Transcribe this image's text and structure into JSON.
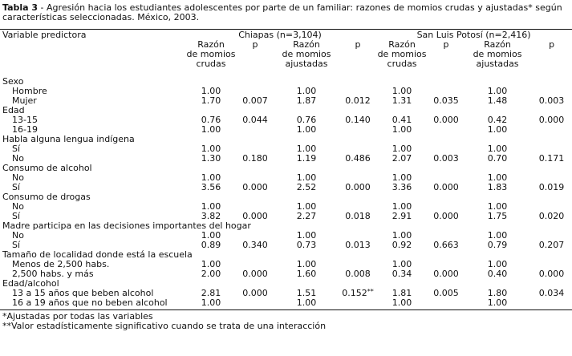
{
  "caption": {
    "label": "Tabla 3",
    "text": " - Agresión hacia los estudiantes adolescentes por parte de un familiar: razones de momios crudas y ajustadas* según características seleccionadas. México, 2003."
  },
  "header": {
    "variable": "Variable predictora",
    "group1": "Chiapas (n=3,104)",
    "group2": "San Luis Potosí (n=2,416)",
    "crude": [
      "Razón",
      "de momios",
      "crudas"
    ],
    "adjusted": [
      "Razón",
      "de momios",
      "ajustadas"
    ],
    "p": "p"
  },
  "rows": [
    {
      "type": "group",
      "label": "Sexo"
    },
    {
      "type": "item",
      "label": "Hombre",
      "v": [
        "1.00",
        "",
        "1.00",
        "",
        "1.00",
        "",
        "1.00",
        ""
      ]
    },
    {
      "type": "item",
      "label": "Mujer",
      "v": [
        "1.70",
        "0.007",
        "1.87",
        "0.012",
        "1.31",
        "0.035",
        "1.48",
        "0.003"
      ]
    },
    {
      "type": "group",
      "label": "Edad"
    },
    {
      "type": "item",
      "label": "13-15",
      "v": [
        "0.76",
        "0.044",
        "0.76",
        "0.140",
        "0.41",
        "0.000",
        "0.42",
        "0.000"
      ]
    },
    {
      "type": "item",
      "label": "16-19",
      "v": [
        "1.00",
        "",
        "1.00",
        "",
        "1.00",
        "",
        "1.00",
        ""
      ]
    },
    {
      "type": "group",
      "label": "Habla alguna lengua indígena"
    },
    {
      "type": "item",
      "label": "Sí",
      "v": [
        "1.00",
        "",
        "1.00",
        "",
        "1.00",
        "",
        "1.00",
        ""
      ]
    },
    {
      "type": "item",
      "label": "No",
      "v": [
        "1.30",
        "0.180",
        "1.19",
        "0.486",
        "2.07",
        "0.003",
        "0.70",
        "0.171"
      ]
    },
    {
      "type": "group",
      "label": "Consumo de alcohol"
    },
    {
      "type": "item",
      "label": "No",
      "v": [
        "1.00",
        "",
        "1.00",
        "",
        "1.00",
        "",
        "1.00",
        ""
      ]
    },
    {
      "type": "item",
      "label": "Sí",
      "v": [
        "3.56",
        "0.000",
        "2.52",
        "0.000",
        "3.36",
        "0.000",
        "1.83",
        "0.019"
      ]
    },
    {
      "type": "group",
      "label": "Consumo de drogas"
    },
    {
      "type": "item",
      "label": "No",
      "v": [
        "1.00",
        "",
        "1.00",
        "",
        "1.00",
        "",
        "1.00",
        ""
      ]
    },
    {
      "type": "item",
      "label": "Sí",
      "v": [
        "3.82",
        "0.000",
        "2.27",
        "0.018",
        "2.91",
        "0.000",
        "1.75",
        "0.020"
      ]
    },
    {
      "type": "group",
      "label": "Madre participa en las decisiones importantes del hogar"
    },
    {
      "type": "item",
      "label": "No",
      "v": [
        "1.00",
        "",
        "1.00",
        "",
        "1.00",
        "",
        "1.00",
        ""
      ]
    },
    {
      "type": "item",
      "label": "Sí",
      "v": [
        "0.89",
        "0.340",
        "0.73",
        "0.013",
        "0.92",
        "0.663",
        "0.79",
        "0.207"
      ]
    },
    {
      "type": "group",
      "label": "Tamaño de localidad donde está la escuela"
    },
    {
      "type": "item",
      "label": "Menos de 2,500 habs.",
      "v": [
        "1.00",
        "",
        "1.00",
        "",
        "1.00",
        "",
        "1.00",
        ""
      ]
    },
    {
      "type": "item",
      "label": "2,500 habs. y más",
      "v": [
        "2.00",
        "0.000",
        "1.60",
        "0.008",
        "0.34",
        "0.000",
        "0.40",
        "0.000"
      ]
    },
    {
      "type": "group",
      "label": "Edad/alcohol"
    },
    {
      "type": "item",
      "label": "13 a 15 años que beben alcohol",
      "v": [
        "2.81",
        "0.000",
        "1.51",
        "0.152**",
        "1.81",
        "0.005",
        "1.80",
        "0.034"
      ]
    },
    {
      "type": "item",
      "label": "16 a 19 años que no beben alcohol",
      "v": [
        "1.00",
        "",
        "1.00",
        "",
        "1.00",
        "",
        "1.00",
        ""
      ]
    }
  ],
  "footnotes": [
    "*Ajustadas por todas las variables",
    "**Valor estadísticamente significativo cuando se trata de una interacción"
  ]
}
